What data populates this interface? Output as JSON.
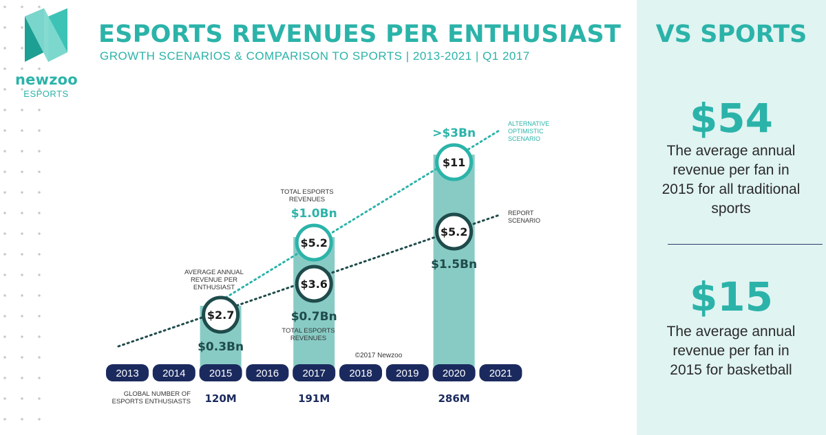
{
  "header": {
    "title": "ESPORTS REVENUES PER ENTHUSIAST",
    "subtitle": "GROWTH SCENARIOS & COMPARISON TO SPORTS | 2013-2021 | Q1 2017"
  },
  "logo": {
    "brand": "newzoo",
    "sub": "ESPORTS"
  },
  "chart_data": {
    "type": "bar",
    "years": [
      "2013",
      "2014",
      "2015",
      "2016",
      "2017",
      "2018",
      "2019",
      "2020",
      "2021"
    ],
    "bars": [
      {
        "year": "2015",
        "report_revenue_label": "$0.3Bn",
        "report_arpu_label": "$2.7",
        "enthusiasts": "120M"
      },
      {
        "year": "2017",
        "report_revenue_label": "$0.7Bn",
        "report_arpu_label": "$3.6",
        "optimistic_revenue_label": "$1.0Bn",
        "optimistic_arpu_label": "$5.2",
        "enthusiasts": "191M"
      },
      {
        "year": "2020",
        "report_revenue_label": "$1.5Bn",
        "report_arpu_label": "$5.2",
        "optimistic_revenue_label": ">$3Bn",
        "optimistic_arpu_label": "$11",
        "enthusiasts": "286M"
      }
    ],
    "series": [
      {
        "name": "REPORT SCENARIO",
        "name_lines": [
          "REPORT",
          "SCENARIO"
        ],
        "color": "#1f4b4b"
      },
      {
        "name": "ALTERNATIVE OPTIMISTIC SCENARIO",
        "name_lines": [
          "ALTERNATIVE",
          "OPTIMISTIC",
          "SCENARIO"
        ],
        "color": "#2bb3a9"
      }
    ],
    "annotations": {
      "avg_rev_label": [
        "AVERAGE ANNUAL",
        "REVENUE PER",
        "ENTHUSIAST"
      ],
      "total_rev_top": [
        "TOTAL ESPORTS",
        "REVENUES"
      ],
      "total_rev_bottom": [
        "TOTAL ESPORTS",
        "REVENUES"
      ],
      "enthusiasts_label": [
        "GLOBAL NUMBER OF",
        "ESPORTS ENTHUSIASTS"
      ],
      "copyright": "©2017 Newzoo"
    }
  },
  "panel": {
    "heading": "VS SPORTS",
    "stat1": {
      "value": "$54",
      "text": "The average annual revenue per fan in 2015 for all traditional sports"
    },
    "stat2": {
      "value": "$15",
      "text": "The average annual revenue per fan in 2015 for basketball"
    }
  },
  "colors": {
    "teal": "#2bb3a9",
    "bar": "#88cbc5",
    "navy": "#1b2a5e",
    "dark_teal": "#1f4b4b"
  }
}
